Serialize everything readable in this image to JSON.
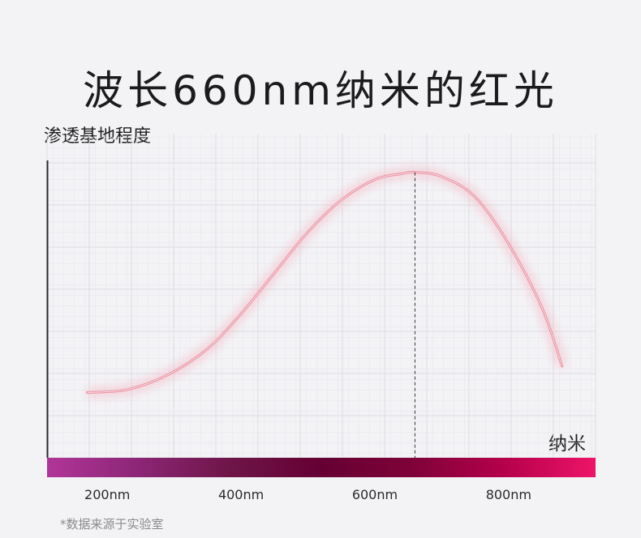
{
  "title": "波长660nm纳米的红光",
  "note": "*数据来源于实验室",
  "chart_data": {
    "type": "line",
    "title": "波长660nm纳米的红光",
    "ylabel": "渗透基地程度",
    "xlabel": "纳米",
    "x_ticks": [
      200,
      400,
      600,
      800
    ],
    "x_tick_labels": [
      "200nm",
      "400nm",
      "600nm",
      "800nm"
    ],
    "xlim": [
      110,
      930
    ],
    "ylim": [
      0,
      1
    ],
    "grid": true,
    "highlight_x": 660,
    "series": [
      {
        "color": "#e8909f",
        "x": [
          170,
          230,
          290,
          350,
          400,
          450,
          500,
          550,
          600,
          640,
          660,
          700,
          750,
          800,
          850,
          880
        ],
        "y": [
          0.21,
          0.22,
          0.27,
          0.36,
          0.48,
          0.62,
          0.76,
          0.87,
          0.94,
          0.96,
          0.965,
          0.95,
          0.88,
          0.72,
          0.5,
          0.3
        ]
      }
    ],
    "spectrum_colors": [
      "#b03598",
      "#8c2676",
      "#6e1548",
      "#650033",
      "#7f0238",
      "#b5004b",
      "#ee1468"
    ]
  }
}
